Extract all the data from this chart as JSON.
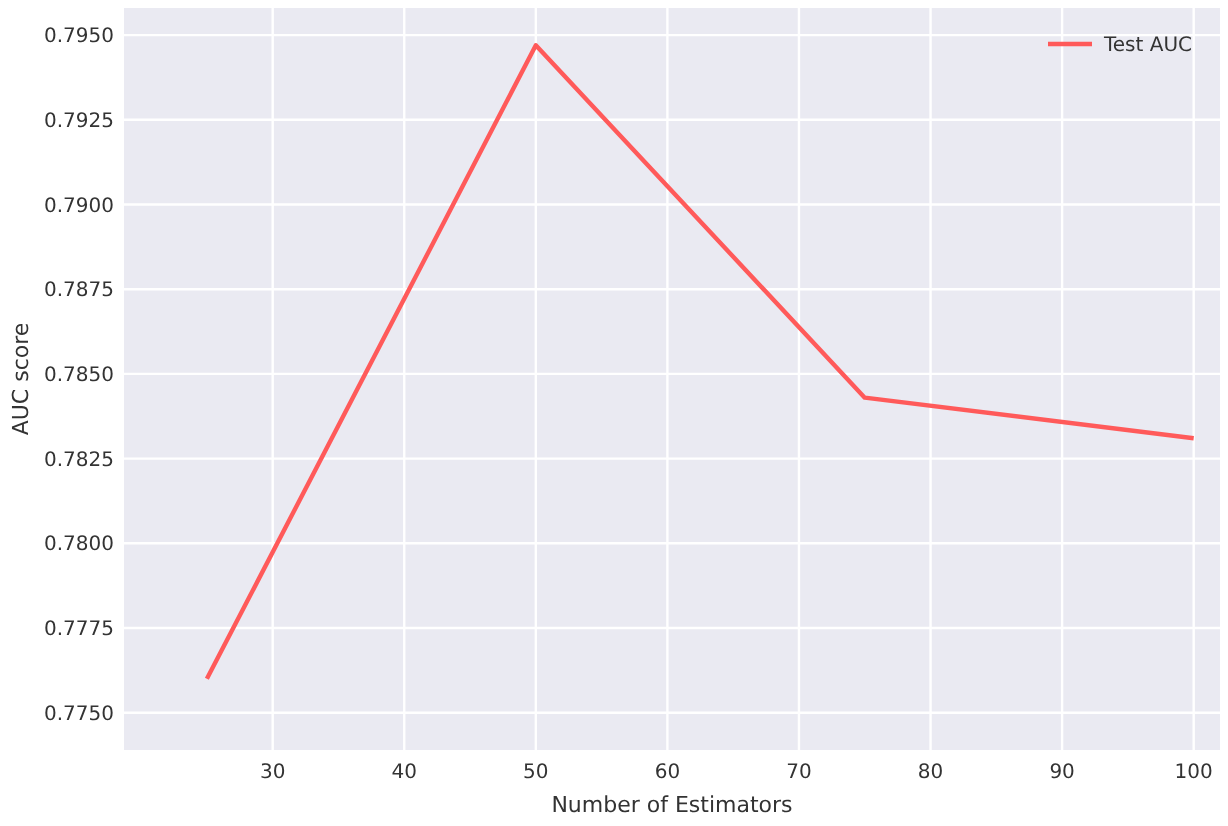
{
  "chart_data": {
    "type": "line",
    "xlabel": "Number of Estimators",
    "ylabel": "AUC score",
    "x": [
      25,
      50,
      75,
      100
    ],
    "series": [
      {
        "name": "Test AUC",
        "color": "#ff5a5a",
        "values": [
          0.776,
          0.7947,
          0.7843,
          0.7831
        ]
      }
    ],
    "xlim": [
      18.7,
      102
    ],
    "ylim": [
      0.7739,
      0.7958
    ],
    "xticks": [
      30,
      40,
      50,
      60,
      70,
      80,
      90,
      100
    ],
    "yticks": [
      {
        "value": 0.775,
        "label": "0.7750"
      },
      {
        "value": 0.7775,
        "label": "0.7775"
      },
      {
        "value": 0.78,
        "label": "0.7800"
      },
      {
        "value": 0.7825,
        "label": "0.7825"
      },
      {
        "value": 0.785,
        "label": "0.7850"
      },
      {
        "value": 0.7875,
        "label": "0.7875"
      },
      {
        "value": 0.79,
        "label": "0.7900"
      },
      {
        "value": 0.7925,
        "label": "0.7925"
      },
      {
        "value": 0.795,
        "label": "0.7950"
      }
    ],
    "grid": true,
    "legend": "top right",
    "line_style": "solid",
    "marker": "none"
  }
}
